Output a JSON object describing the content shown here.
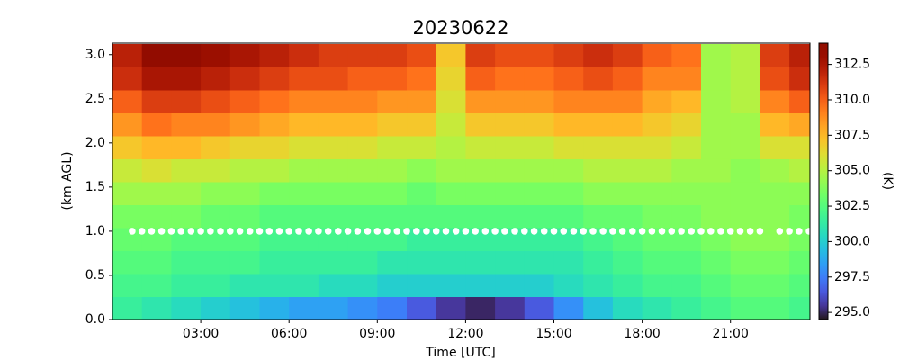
{
  "chart_data": {
    "type": "heatmap",
    "title": "20230622",
    "x_label": "Time [UTC]",
    "y_label": "(km AGL)",
    "colorbar_label": "(K)",
    "colormap": "turbo",
    "xbins": [
      0,
      1,
      2,
      3,
      4,
      5,
      6,
      7,
      8,
      9,
      10,
      11,
      12,
      13,
      14,
      15,
      16,
      17,
      18,
      19,
      20,
      21,
      22,
      23,
      23.7
    ],
    "ybins": [
      0,
      0.26,
      0.52,
      0.78,
      1.04,
      1.3,
      1.56,
      1.82,
      2.08,
      2.34,
      2.6,
      2.86,
      3.12
    ],
    "z": [
      [
        301.5,
        301,
        300.5,
        300,
        299.5,
        299,
        298.5,
        298.5,
        298,
        297.5,
        296.5,
        295.5,
        295,
        295.5,
        296.5,
        298,
        299.5,
        300.5,
        301,
        301.5,
        302,
        302.5,
        302.5,
        302
      ],
      [
        302,
        302,
        301.5,
        301.5,
        301,
        301,
        301,
        300.5,
        300.5,
        300,
        300,
        300,
        300,
        300,
        300,
        300.5,
        301,
        301.5,
        302,
        302,
        302.5,
        303,
        303,
        302.5
      ],
      [
        302.5,
        302.5,
        302,
        302,
        302,
        301.5,
        301.5,
        301.5,
        301.5,
        301,
        301,
        301,
        301,
        301,
        301,
        301,
        301.5,
        302,
        302.5,
        302.5,
        303,
        303.5,
        303.5,
        303
      ],
      [
        303,
        303,
        302.5,
        302.5,
        302.5,
        302,
        302,
        302,
        302,
        302,
        301.5,
        301.5,
        301.5,
        301.5,
        301.5,
        301.5,
        302,
        302.5,
        303,
        303,
        303.5,
        304,
        304,
        303.5
      ],
      [
        303.5,
        303.5,
        303.5,
        303,
        303,
        302.5,
        302.5,
        302.5,
        302.5,
        302.5,
        302.5,
        302.5,
        302.5,
        302.5,
        302.5,
        302.5,
        303,
        303,
        303.5,
        303.5,
        304,
        304,
        304,
        303.5
      ],
      [
        304.5,
        304.5,
        304.5,
        304,
        304,
        303.5,
        303.5,
        303.5,
        303.5,
        303.5,
        303,
        303.5,
        303.5,
        303.5,
        303.5,
        303.5,
        304,
        304,
        304,
        304,
        304,
        304,
        304,
        304
      ],
      [
        305.5,
        306,
        305.5,
        305.5,
        305,
        305,
        304.5,
        304.5,
        304.5,
        304.5,
        304,
        304.5,
        304.5,
        304.5,
        304.5,
        304.5,
        305,
        305,
        305,
        304.5,
        304.5,
        304,
        304.5,
        305
      ],
      [
        307,
        307.5,
        307.5,
        307,
        306.5,
        306.5,
        306,
        306,
        306,
        305.5,
        305.5,
        305,
        305.5,
        305.5,
        305.5,
        306,
        306,
        306,
        306,
        305.5,
        304.5,
        304.5,
        306,
        306
      ],
      [
        308.5,
        309.5,
        309,
        309,
        308.5,
        308,
        307.5,
        307.5,
        307.5,
        307,
        307,
        305.5,
        307,
        307,
        307,
        307.5,
        307.5,
        307.5,
        307,
        306.5,
        304.5,
        304.5,
        307.5,
        308
      ],
      [
        310,
        311,
        311,
        310.5,
        310,
        309.5,
        309,
        309,
        309,
        308.5,
        308.5,
        306,
        308.5,
        308.5,
        308.5,
        309,
        309,
        309,
        308,
        307.5,
        304.5,
        305,
        309,
        310
      ],
      [
        311.5,
        312.5,
        312.5,
        312,
        311.5,
        311,
        310.5,
        310.5,
        310,
        310,
        309.5,
        306.5,
        310,
        309.5,
        309.5,
        310,
        310.5,
        310,
        309,
        309,
        304.5,
        305,
        310.5,
        311.5
      ],
      [
        312,
        313.5,
        313.5,
        313,
        312.5,
        312,
        311.5,
        311,
        311,
        311,
        310.5,
        307,
        311,
        310.5,
        310.5,
        311,
        311.5,
        311,
        310,
        309.5,
        304.5,
        305,
        311,
        312
      ]
    ],
    "clim": [
      294.5,
      314
    ],
    "cticks": [
      {
        "value": 295,
        "label": "295.0"
      },
      297.5,
      {
        "value": 300,
        "label": "300.0"
      },
      302.5,
      {
        "value": 305,
        "label": "305.0"
      },
      307.5,
      {
        "value": 310,
        "label": "310.0"
      },
      312.5
    ],
    "markers": {
      "color": "#ffffff",
      "y": 1.0,
      "x": [
        0.67,
        1,
        1.33,
        1.67,
        2,
        2.33,
        2.67,
        3,
        3.33,
        3.67,
        4,
        4.33,
        4.67,
        5,
        5.33,
        5.67,
        6,
        6.33,
        6.67,
        7,
        7.33,
        7.67,
        8,
        8.33,
        8.67,
        9,
        9.33,
        9.67,
        10,
        10.33,
        10.67,
        11,
        11.33,
        11.67,
        12,
        12.33,
        12.67,
        13,
        13.33,
        13.67,
        14,
        14.33,
        14.67,
        15,
        15.33,
        15.67,
        16,
        16.33,
        16.67,
        17,
        17.33,
        17.67,
        18,
        18.33,
        18.67,
        19,
        19.33,
        19.67,
        20,
        20.33,
        20.67,
        21,
        21.33,
        21.67,
        22,
        22.67,
        23,
        23.33,
        23.67
      ]
    },
    "xlim": [
      0,
      23.7
    ],
    "ylim": [
      0,
      3.13
    ],
    "xticks": [
      {
        "value": 3,
        "label": "03:00"
      },
      {
        "value": 6,
        "label": "06:00"
      },
      {
        "value": 9,
        "label": "09:00"
      },
      {
        "value": 12,
        "label": "12:00"
      },
      {
        "value": 15,
        "label": "15:00"
      },
      {
        "value": 18,
        "label": "18:00"
      },
      {
        "value": 21,
        "label": "21:00"
      }
    ],
    "yticks": [
      {
        "value": 0,
        "label": "0.0"
      },
      0.5,
      {
        "value": 1,
        "label": "1.0"
      },
      1.5,
      {
        "value": 2,
        "label": "2.0"
      },
      2.5,
      {
        "value": 3,
        "label": "3.0"
      }
    ]
  }
}
